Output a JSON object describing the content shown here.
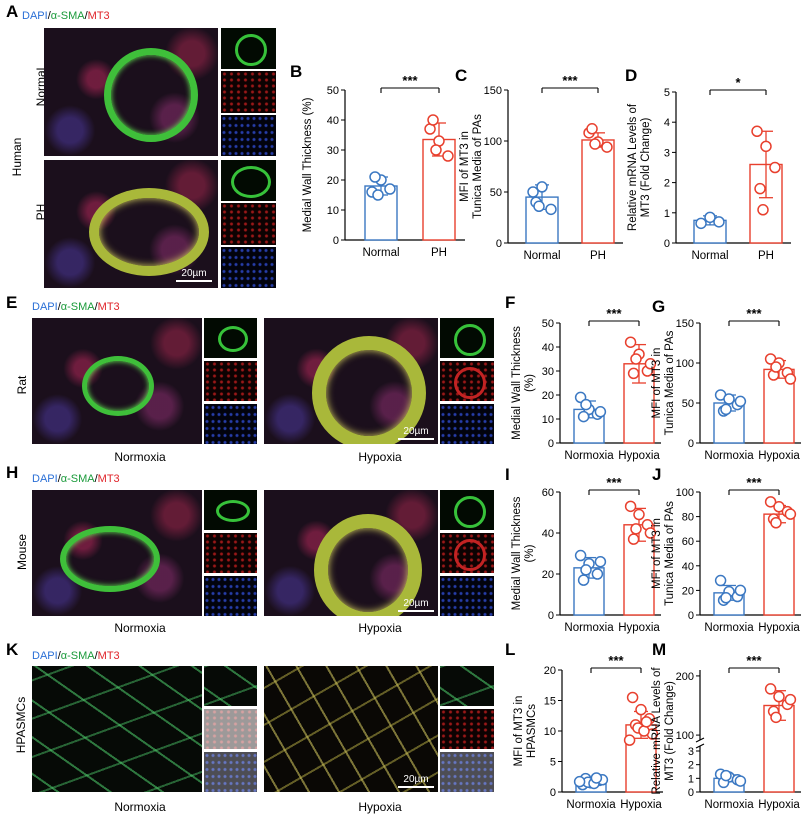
{
  "panels": {
    "A": {
      "letter": "A",
      "legend": {
        "dapi": "DAPI",
        "sma": "α-SMA",
        "mt3": "MT3",
        "sep": "/"
      },
      "species": "Human",
      "row1": "Normal",
      "row2": "PH",
      "scale": "20µm"
    },
    "E": {
      "letter": "E",
      "legend": {
        "dapi": "DAPI",
        "sma": "α-SMA",
        "mt3": "MT3",
        "sep": "/"
      },
      "species": "Rat",
      "left": "Normoxia",
      "right": "Hypoxia",
      "scale": "20µm"
    },
    "H": {
      "letter": "H",
      "legend": {
        "dapi": "DAPI",
        "sma": "α-SMA",
        "mt3": "MT3",
        "sep": "/"
      },
      "species": "Mouse",
      "left": "Normoxia",
      "right": "Hypoxia",
      "scale": "20µm"
    },
    "K": {
      "letter": "K",
      "legend": {
        "dapi": "DAPI",
        "sma": "α-SMA",
        "mt3": "MT3",
        "sep": "/"
      },
      "species": "HPASMCs",
      "left": "Normoxia",
      "right": "Hypoxia",
      "scale": "20µm"
    }
  },
  "colors": {
    "blue": "#3b78c2",
    "red": "#e8402e"
  },
  "chart_data": [
    {
      "id": "B",
      "type": "bar",
      "title": "",
      "ylabel": [
        "Medial Wall Thickness (%)"
      ],
      "categories": [
        "Normal",
        "PH"
      ],
      "ylim": [
        0,
        50
      ],
      "yticks": [
        0,
        10,
        20,
        30,
        40,
        50
      ],
      "means": [
        18,
        33.5
      ],
      "sd": [
        3,
        5.5
      ],
      "points": [
        [
          16,
          20,
          17,
          21,
          15
        ],
        [
          37,
          33,
          28,
          40,
          30
        ]
      ],
      "sig": "***"
    },
    {
      "id": "C",
      "type": "bar",
      "title": "",
      "ylabel": [
        "MFI of MT3 in",
        "Tunica Media of PAs"
      ],
      "categories": [
        "Normal",
        "PH"
      ],
      "ylim": [
        0,
        150
      ],
      "yticks": [
        0,
        50,
        100,
        150
      ],
      "means": [
        45,
        101
      ],
      "sd": [
        12,
        7
      ],
      "points": [
        [
          50,
          55,
          33,
          40,
          36
        ],
        [
          108,
          99,
          94,
          112,
          97
        ]
      ],
      "sig": "***"
    },
    {
      "id": "D",
      "type": "bar",
      "title": "",
      "ylabel": [
        "Relative mRNA Levels of",
        "MT3 (Fold Change)"
      ],
      "categories": [
        "Normal",
        "PH"
      ],
      "ylim": [
        0,
        5
      ],
      "yticks": [
        0,
        1,
        2,
        3,
        4,
        5
      ],
      "means": [
        0.75,
        2.6
      ],
      "sd": [
        0.15,
        1.1
      ],
      "points": [
        [
          0.65,
          0.85,
          0.7
        ],
        [
          3.7,
          3.2,
          2.5,
          1.8,
          1.1
        ]
      ],
      "sig": "*"
    },
    {
      "id": "F",
      "type": "bar",
      "title": "",
      "ylabel": [
        "Medial Wall Thickness",
        "(%)"
      ],
      "categories": [
        "Normoxia",
        "Hypoxia"
      ],
      "ylim": [
        0,
        50
      ],
      "yticks": [
        0,
        10,
        20,
        30,
        40,
        50
      ],
      "means": [
        14,
        33
      ],
      "sd": [
        3.5,
        8
      ],
      "points": [
        [
          19,
          14,
          12,
          11,
          16,
          13
        ],
        [
          42,
          37,
          30,
          29,
          35,
          33
        ]
      ],
      "sig": "***"
    },
    {
      "id": "G",
      "type": "bar",
      "title": "",
      "ylabel": [
        "MFI of MT3 in",
        "Tunica Media of PAs"
      ],
      "categories": [
        "Normoxia",
        "Hypoxia"
      ],
      "ylim": [
        0,
        150
      ],
      "yticks": [
        0,
        50,
        100,
        150
      ],
      "means": [
        50,
        92
      ],
      "sd": [
        10,
        11
      ],
      "points": [
        [
          60,
          55,
          48,
          40,
          42,
          52
        ],
        [
          105,
          100,
          88,
          85,
          95,
          80
        ]
      ],
      "sig": "***"
    },
    {
      "id": "I",
      "type": "bar",
      "title": "",
      "ylabel": [
        "Medial Wall Thickness",
        "(%)"
      ],
      "categories": [
        "Normoxia",
        "Hypoxia"
      ],
      "ylim": [
        0,
        60
      ],
      "yticks": [
        0,
        20,
        40,
        60
      ],
      "means": [
        23,
        44
      ],
      "sd": [
        5,
        8
      ],
      "points": [
        [
          29,
          25,
          20,
          17,
          22,
          26
        ],
        [
          53,
          49,
          44,
          37,
          42,
          40
        ]
      ],
      "sig": "***"
    },
    {
      "id": "J",
      "type": "bar",
      "title": "",
      "ylabel": [
        "MFI of MT3 in",
        "Tunica Media of PAs"
      ],
      "categories": [
        "Normoxia",
        "Hypoxia"
      ],
      "ylim": [
        0,
        100
      ],
      "yticks": [
        0,
        20,
        40,
        60,
        80,
        100
      ],
      "means": [
        18,
        82
      ],
      "sd": [
        6,
        7
      ],
      "points": [
        [
          28,
          19,
          15,
          12,
          14,
          20
        ],
        [
          92,
          88,
          84,
          78,
          75,
          82
        ]
      ],
      "sig": "***"
    },
    {
      "id": "L",
      "type": "bar",
      "title": "",
      "ylabel": [
        "MFI of MT3 in",
        "HPASMCs"
      ],
      "categories": [
        "Normoxia",
        "Hypoxia"
      ],
      "ylim": [
        0,
        20
      ],
      "yticks": [
        0,
        5,
        10,
        15,
        20
      ],
      "means": [
        1.8,
        11
      ],
      "sd": [
        0.4,
        2.2
      ],
      "points": [
        [
          1.2,
          1.5,
          1.9,
          2.2,
          1.6,
          2.0,
          1.7,
          1.4,
          2.3
        ],
        [
          15.5,
          13.5,
          12,
          11,
          10.5,
          9.5,
          8.5,
          10,
          11.5
        ]
      ],
      "sig": "***"
    },
    {
      "id": "M",
      "type": "bar-broken",
      "title": "",
      "ylabel": [
        "Relative mRNA Levels of",
        "MT3 (Fold Change)"
      ],
      "categories": [
        "Normoxia",
        "Hypoxia"
      ],
      "lower": {
        "ylim": [
          0,
          3
        ],
        "yticks": [
          0,
          1,
          2,
          3
        ]
      },
      "upper": {
        "ylim": [
          90,
          210
        ],
        "yticks": [
          100,
          200
        ]
      },
      "means": [
        1.0,
        150
      ],
      "sd": [
        0.25,
        25
      ],
      "points": [
        [
          1.3,
          1.1,
          0.9,
          0.7,
          1.2,
          0.8
        ],
        [
          178,
          165,
          152,
          140,
          130,
          160
        ]
      ],
      "sig": "***"
    }
  ]
}
